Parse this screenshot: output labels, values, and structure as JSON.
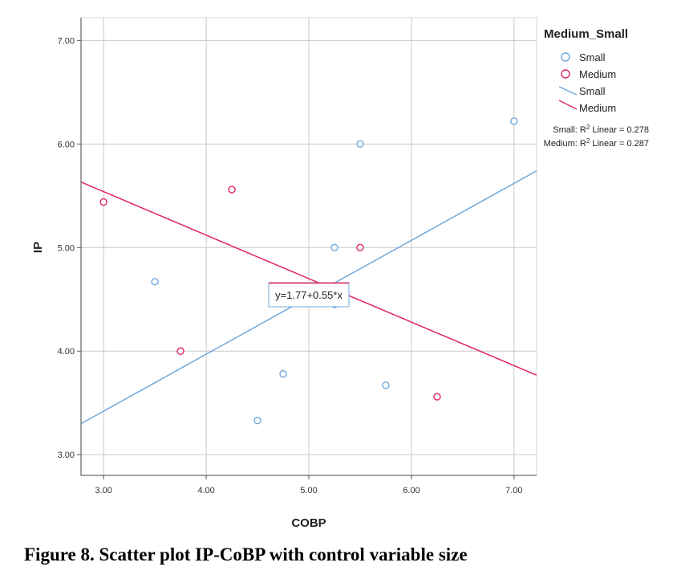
{
  "chart_data": {
    "type": "scatter",
    "xlabel": "COBP",
    "ylabel": "IP",
    "xlim": [
      2.78,
      7.22
    ],
    "ylim": [
      2.8,
      7.22
    ],
    "x_ticks": [
      "3.00",
      "4.00",
      "5.00",
      "6.00",
      "7.00"
    ],
    "y_ticks": [
      "3.00",
      "4.00",
      "5.00",
      "6.00",
      "7.00"
    ],
    "grid": true,
    "legend_title": "Medium_Small",
    "legend_placement": "top-right",
    "series": [
      {
        "name": "Small",
        "color": "#6fa8dc",
        "points": [
          [
            3.5,
            4.67
          ],
          [
            4.5,
            3.33
          ],
          [
            4.75,
            3.78
          ],
          [
            5.25,
            5.0
          ],
          [
            5.25,
            4.45
          ],
          [
            5.5,
            6.0
          ],
          [
            5.75,
            3.67
          ],
          [
            7.0,
            6.22
          ]
        ],
        "fit": {
          "intercept": 1.77,
          "slope": 0.55
        }
      },
      {
        "name": "Medium",
        "color": "#e0245e",
        "points": [
          [
            3.0,
            5.44
          ],
          [
            3.75,
            4.0
          ],
          [
            4.25,
            5.56
          ],
          [
            5.5,
            5.0
          ],
          [
            6.25,
            3.56
          ]
        ],
        "fit": {
          "intercept": 6.8,
          "slope": -0.42
        }
      }
    ],
    "line_legend": [
      "Small",
      "Medium"
    ],
    "r2_labels": [
      {
        "prefix": "Small: R",
        "sup": "2",
        "suffix": " Linear = 0.278"
      },
      {
        "prefix": "Medium: R",
        "sup": "2",
        "suffix": " Linear = 0.287"
      }
    ],
    "equation_label": "y=1.77+0.55*x"
  },
  "caption": "Figure 8. Scatter plot IP-CoBP with control variable size"
}
